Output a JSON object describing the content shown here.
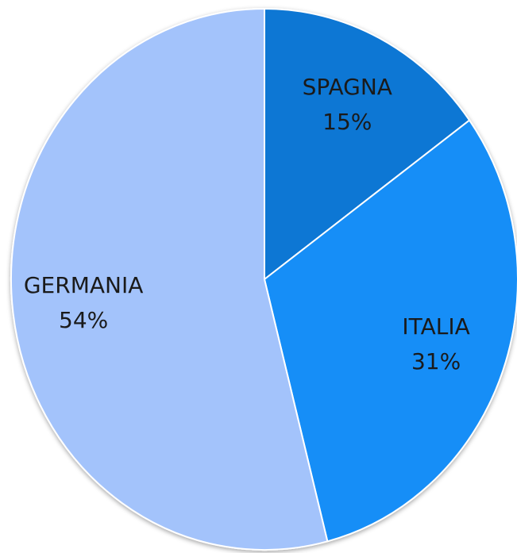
{
  "chart_data": {
    "type": "pie",
    "categories": [
      "SPAGNA",
      "ITALIA",
      "GERMANIA"
    ],
    "values": [
      15,
      31,
      54
    ],
    "value_labels": [
      "15%",
      "31%",
      "54%"
    ],
    "colors": [
      "#1177d4",
      "#168ef7",
      "#a3c3fb"
    ]
  }
}
